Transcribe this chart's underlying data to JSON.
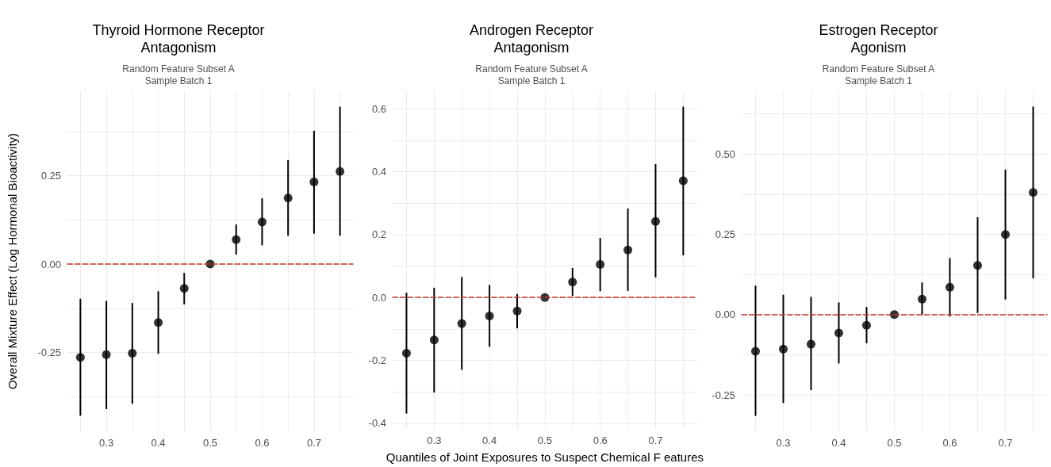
{
  "chart_data": [
    {
      "type": "scatter",
      "title": "Thyroid Hormone Receptor\nAntagonism",
      "subtitle": "Random Feature Subset A\nSample Batch 1",
      "ylabel": "Overall Mixture Effect (Log Hormonal Bioactivity)",
      "grid": true,
      "marker": "circle",
      "x": [
        0.25,
        0.3,
        0.35,
        0.4,
        0.45,
        0.5,
        0.55,
        0.6,
        0.65,
        0.7,
        0.75
      ],
      "series": [
        {
          "color": "#000000",
          "values": [
            -0.264,
            -0.256,
            -0.252,
            -0.165,
            -0.069,
            0,
            0.069,
            0.119,
            0.187,
            0.232,
            0.262
          ],
          "errors": [
            [
              -0.429,
              -0.098
            ],
            [
              -0.41,
              -0.104
            ],
            [
              -0.395,
              -0.11
            ],
            [
              -0.254,
              -0.077
            ],
            [
              -0.114,
              -0.025
            ],
            null,
            [
              0.027,
              0.112
            ],
            [
              0.053,
              0.186
            ],
            [
              0.08,
              0.294
            ],
            [
              0.086,
              0.377
            ],
            [
              0.08,
              0.445
            ]
          ]
        }
      ],
      "xlim": [
        0.225,
        0.775
      ],
      "xticks": [
        {
          "value": 0.25,
          "label": null
        },
        0.3,
        {
          "value": 0.35,
          "label": null
        },
        0.4,
        {
          "value": 0.45,
          "label": null
        },
        0.5,
        {
          "value": 0.55,
          "label": null
        },
        0.6,
        {
          "value": 0.65,
          "label": null
        },
        0.7,
        {
          "value": 0.75,
          "label": null
        }
      ],
      "ylim": [
        -0.473,
        0.489
      ],
      "yticks": [
        {
          "value": -0.375,
          "label": null
        },
        -0.25,
        {
          "value": -0.125,
          "label": null
        },
        {
          "value": 0,
          "label": "0.00"
        },
        {
          "value": 0.125,
          "label": null
        },
        0.25,
        {
          "value": 0.375,
          "label": null
        }
      ],
      "ref_lines": [
        {
          "axis": "y",
          "value": 0,
          "color": "#c0392b",
          "line_style": "dashed"
        }
      ]
    },
    {
      "type": "scatter",
      "title": "Androgen Receptor\nAntagonism",
      "subtitle": "Random Feature Subset A\nSample Batch 1",
      "xlabel": "Quantiles of Joint Exposures to Suspect Chemical F eatures",
      "grid": true,
      "marker": "circle",
      "x": [
        0.25,
        0.3,
        0.35,
        0.4,
        0.45,
        0.5,
        0.55,
        0.6,
        0.65,
        0.7,
        0.75
      ],
      "series": [
        {
          "color": "#000000",
          "values": [
            -0.177,
            -0.135,
            -0.083,
            -0.059,
            -0.043,
            0,
            0.049,
            0.105,
            0.151,
            0.242,
            0.371
          ],
          "errors": [
            [
              -0.369,
              0.015
            ],
            [
              -0.302,
              0.031
            ],
            [
              -0.23,
              0.065
            ],
            [
              -0.157,
              0.04
            ],
            [
              -0.098,
              0.011
            ],
            null,
            [
              0.005,
              0.094
            ],
            [
              0.02,
              0.189
            ],
            [
              0.021,
              0.283
            ],
            [
              0.064,
              0.424
            ],
            [
              0.134,
              0.607
            ]
          ]
        }
      ],
      "xlim": [
        0.225,
        0.775
      ],
      "xticks": [
        {
          "value": 0.25,
          "label": null
        },
        0.3,
        {
          "value": 0.35,
          "label": null
        },
        0.4,
        {
          "value": 0.45,
          "label": null
        },
        0.5,
        {
          "value": 0.55,
          "label": null
        },
        0.6,
        {
          "value": 0.65,
          "label": null
        },
        0.7,
        {
          "value": 0.75,
          "label": null
        }
      ],
      "ylim": [
        -0.418,
        0.656
      ],
      "yticks": [
        -0.4,
        {
          "value": -0.3,
          "label": null
        },
        -0.2,
        {
          "value": -0.1,
          "label": null
        },
        {
          "value": 0,
          "label": "0.0"
        },
        {
          "value": 0.1,
          "label": null
        },
        0.2,
        {
          "value": 0.3,
          "label": null
        },
        0.4,
        {
          "value": 0.5,
          "label": null
        },
        0.6
      ],
      "ref_lines": [
        {
          "axis": "y",
          "value": 0,
          "color": "#c0392b",
          "line_style": "dashed"
        }
      ]
    },
    {
      "type": "scatter",
      "title": "Estrogen Receptor\nAgonism",
      "subtitle": "Random Feature Subset A\nSample Batch 1",
      "grid": true,
      "marker": "circle",
      "x": [
        0.25,
        0.3,
        0.35,
        0.4,
        0.45,
        0.5,
        0.55,
        0.6,
        0.65,
        0.7,
        0.75
      ],
      "series": [
        {
          "color": "#000000",
          "values": [
            -0.114,
            -0.107,
            -0.092,
            -0.057,
            -0.033,
            0,
            0.048,
            0.085,
            0.153,
            0.249,
            0.38
          ],
          "errors": [
            [
              -0.315,
              0.09
            ],
            [
              -0.275,
              0.062
            ],
            [
              -0.235,
              0.055
            ],
            [
              -0.152,
              0.038
            ],
            [
              -0.089,
              0.024
            ],
            null,
            [
              0,
              0.1
            ],
            [
              -0.006,
              0.176
            ],
            [
              0.005,
              0.303
            ],
            [
              0.047,
              0.451
            ],
            [
              0.113,
              0.647
            ]
          ]
        }
      ],
      "xlim": [
        0.225,
        0.775
      ],
      "xticks": [
        {
          "value": 0.25,
          "label": null
        },
        0.3,
        {
          "value": 0.35,
          "label": null
        },
        0.4,
        {
          "value": 0.45,
          "label": null
        },
        0.5,
        {
          "value": 0.55,
          "label": null
        },
        0.6,
        {
          "value": 0.65,
          "label": null
        },
        0.7,
        {
          "value": 0.75,
          "label": null
        }
      ],
      "ylim": [
        -0.363,
        0.695
      ],
      "yticks": [
        -0.25,
        {
          "value": -0.125,
          "label": null
        },
        {
          "value": 0,
          "label": "0.00"
        },
        {
          "value": 0.125,
          "label": null
        },
        0.25,
        {
          "value": 0.375,
          "label": null
        },
        {
          "value": 0.5,
          "label": "0.50"
        },
        {
          "value": 0.625,
          "label": null
        }
      ],
      "ref_lines": [
        {
          "axis": "y",
          "value": 0,
          "color": "#c0392b",
          "line_style": "dashed"
        }
      ]
    }
  ]
}
